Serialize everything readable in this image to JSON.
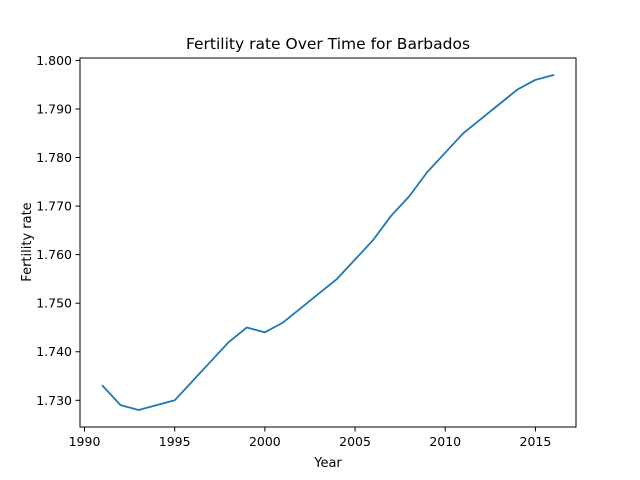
{
  "chart_data": {
    "type": "line",
    "title": "Fertility rate Over Time for Barbados",
    "xlabel": "Year",
    "ylabel": "Fertility rate",
    "xlim": [
      1989.75,
      2017.25
    ],
    "ylim": [
      1.7245,
      1.8005
    ],
    "xticks": [
      1990,
      1995,
      2000,
      2005,
      2010,
      2015
    ],
    "yticks": [
      1.73,
      1.74,
      1.75,
      1.76,
      1.77,
      1.78,
      1.79,
      1.8
    ],
    "xtick_labels": [
      "1990",
      "1995",
      "2000",
      "2005",
      "2010",
      "2015"
    ],
    "ytick_labels": [
      "1.730",
      "1.740",
      "1.750",
      "1.760",
      "1.770",
      "1.780",
      "1.790",
      "1.800"
    ],
    "grid": false,
    "series_color": "#1f77b4",
    "series": [
      {
        "x": [
          1991,
          1992,
          1993,
          1994,
          1995,
          1996,
          1997,
          1998,
          1999,
          2000,
          2001,
          2002,
          2003,
          2004,
          2005,
          2006,
          2007,
          2008,
          2009,
          2010,
          2011,
          2012,
          2013,
          2014,
          2015,
          2016
        ],
        "values": [
          1.733,
          1.729,
          1.728,
          1.729,
          1.73,
          1.734,
          1.738,
          1.742,
          1.745,
          1.744,
          1.746,
          1.749,
          1.752,
          1.755,
          1.759,
          1.763,
          1.768,
          1.772,
          1.777,
          1.781,
          1.785,
          1.788,
          1.791,
          1.794,
          1.796,
          1.797
        ]
      }
    ]
  }
}
